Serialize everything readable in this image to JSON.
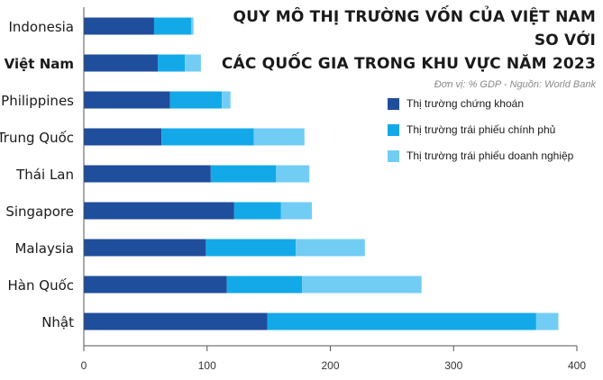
{
  "title_line1": "QUY MÔ THỊ TRƯỜNG VỐN CỦA VIỆT NAM SO VỚI",
  "title_line2": "CÁC QUỐC GIA TRONG KHU VỰC NĂM 2023",
  "source": "Đơn vị: % GDP  -  Nguồn: World Bank",
  "colors": {
    "stock": "#1f4e9c",
    "govt_bond": "#13a9e8",
    "corp_bond": "#72cdf4",
    "axis": "#555555",
    "gridline": "#cccccc"
  },
  "chart_data": {
    "type": "bar",
    "orientation": "horizontal",
    "stacked": true,
    "unit": "% GDP",
    "categories": [
      "Indonesia",
      "Việt Nam",
      "Philippines",
      "Trung Quốc",
      "Thái Lan",
      "Singapore",
      "Malaysia",
      "Hàn Quốc",
      "Nhật"
    ],
    "highlight_category": "Việt Nam",
    "series": [
      {
        "name": "Thị trường chứng khoán",
        "color": "#1f4e9c",
        "values": [
          57,
          60,
          70,
          63,
          103,
          122,
          99,
          116,
          149
        ]
      },
      {
        "name": "Thị trường trái phiếu chính phủ",
        "color": "#13a9e8",
        "values": [
          30,
          22,
          42,
          75,
          53,
          38,
          73,
          61,
          218
        ]
      },
      {
        "name": "Thị trường trái phiếu doanh nghiệp",
        "color": "#72cdf4",
        "values": [
          2,
          13,
          7,
          41,
          27,
          25,
          56,
          97,
          18
        ]
      }
    ],
    "xlim": [
      0,
      400
    ],
    "xticks": [
      0,
      100,
      200,
      300,
      400
    ],
    "grid": false,
    "legend_position": "right"
  }
}
